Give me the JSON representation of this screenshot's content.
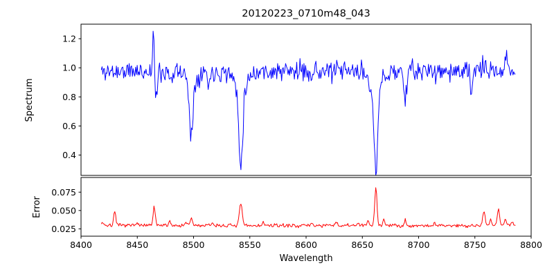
{
  "title": "20120223_0710m48_043",
  "chart_data": [
    {
      "type": "line",
      "name": "spectrum",
      "ylabel": "Spectrum",
      "color": "#0000ff",
      "x_range": [
        8400,
        8800
      ],
      "y_range": [
        0.26,
        1.3
      ],
      "y_ticks": [
        0.4,
        0.6,
        0.8,
        1.0,
        1.2
      ],
      "y_tick_labels": [
        "0.4",
        "0.6",
        "0.8",
        "1.0",
        "1.2"
      ],
      "x_start": 8418,
      "x_end": 8786,
      "n_points": 520,
      "base_level": 0.975,
      "noise_sigma": 0.034,
      "features_note": "absorption/emission features as [center_wavelength, amplitude, sigma]; Ca II triplet lines at 8498, 8542, 8662",
      "features": [
        [
          8464.3,
          0.26,
          0.7
        ],
        [
          8467.0,
          -0.2,
          0.9
        ],
        [
          8481.0,
          -0.09,
          0.7
        ],
        [
          8498.0,
          -0.36,
          1.5
        ],
        [
          8498.0,
          -0.08,
          4.0
        ],
        [
          8513.5,
          -0.1,
          1.0
        ],
        [
          8542.0,
          -0.5,
          1.7
        ],
        [
          8542.0,
          -0.13,
          5.0
        ],
        [
          8662.0,
          -0.58,
          1.7
        ],
        [
          8662.0,
          -0.12,
          5.0
        ],
        [
          8688.0,
          -0.2,
          1.1
        ],
        [
          8747.0,
          -0.13,
          1.0
        ],
        [
          8757.0,
          0.09,
          0.6
        ],
        [
          8778.0,
          0.15,
          0.7
        ]
      ]
    },
    {
      "type": "line",
      "name": "error",
      "ylabel": "Error",
      "xlabel": "Wavelength",
      "color": "#ff0000",
      "x_range": [
        8400,
        8800
      ],
      "y_range": [
        0.015,
        0.095
      ],
      "y_ticks": [
        0.025,
        0.05,
        0.075
      ],
      "y_tick_labels": [
        "0.025",
        "0.050",
        "0.075"
      ],
      "x_ticks": [
        8400,
        8450,
        8500,
        8550,
        8600,
        8650,
        8700,
        8750,
        8800
      ],
      "x_tick_labels": [
        "8400",
        "8450",
        "8500",
        "8550",
        "8600",
        "8650",
        "8700",
        "8750",
        "8800"
      ],
      "x_start": 8418,
      "x_end": 8786,
      "n_points": 520,
      "base_level": 0.0295,
      "noise_sigma": 0.0012,
      "features_note": "error spikes as [center_wavelength, amplitude, sigma]",
      "features": [
        [
          8419,
          0.004,
          1.5
        ],
        [
          8430,
          0.021,
          0.9
        ],
        [
          8450,
          0.006,
          0.8
        ],
        [
          8465,
          0.026,
          0.9
        ],
        [
          8479,
          0.007,
          0.8
        ],
        [
          8493,
          0.005,
          0.8
        ],
        [
          8498,
          0.01,
          1.0
        ],
        [
          8517,
          0.004,
          0.8
        ],
        [
          8542,
          0.03,
          1.2
        ],
        [
          8562,
          0.004,
          0.8
        ],
        [
          8605,
          0.003,
          1.0
        ],
        [
          8627,
          0.004,
          0.8
        ],
        [
          8646,
          0.004,
          0.8
        ],
        [
          8655,
          0.006,
          0.8
        ],
        [
          8662,
          0.053,
          1.0
        ],
        [
          8669,
          0.009,
          0.8
        ],
        [
          8688,
          0.007,
          0.8
        ],
        [
          8714,
          0.003,
          0.8
        ],
        [
          8758,
          0.021,
          1.0
        ],
        [
          8764,
          0.008,
          0.8
        ],
        [
          8771,
          0.023,
          1.0
        ],
        [
          8777,
          0.01,
          0.8
        ],
        [
          8783,
          0.004,
          1.0
        ]
      ]
    }
  ]
}
